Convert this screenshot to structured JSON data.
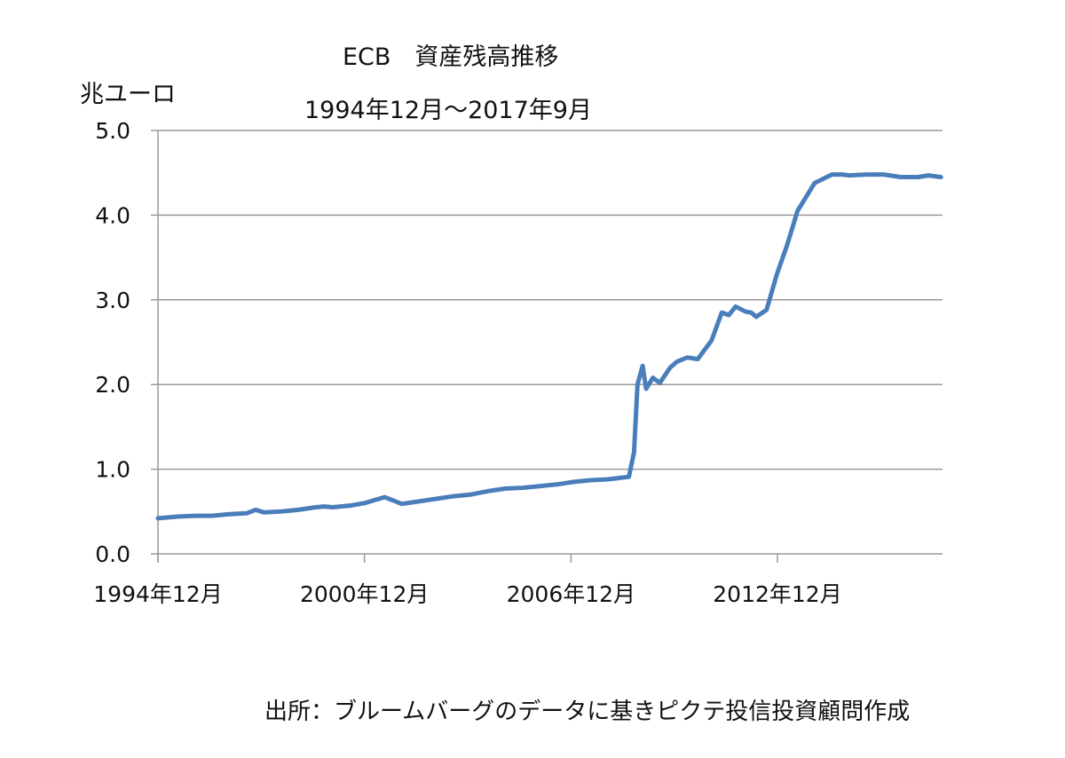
{
  "chart_data": {
    "type": "line",
    "title": "ECB　資産残高推移",
    "subtitle": "1994年12月～2017年9月",
    "ylabel": "兆ユーロ",
    "xlabel": "",
    "ylim": [
      0,
      5
    ],
    "yticks": [
      "0.0",
      "1.0",
      "2.0",
      "3.0",
      "4.0",
      "5.0"
    ],
    "xticks": [
      "1994年12月",
      "2000年12月",
      "2006年12月",
      "2012年12月"
    ],
    "xtick_years": [
      1994.917,
      2000.917,
      2006.917,
      2012.917
    ],
    "xrange": [
      1994.917,
      2017.667
    ],
    "grid": "horizontal",
    "legend": "none",
    "line_color": "#4a7ebb",
    "series": [
      {
        "name": "ECB資産残高",
        "x": [
          1994.917,
          1995.5,
          1996.0,
          1996.5,
          1997.0,
          1997.5,
          1997.75,
          1998.0,
          1998.5,
          1999.0,
          1999.5,
          1999.75,
          2000.0,
          2000.5,
          2000.917,
          2001.5,
          2002.0,
          2002.5,
          2003.0,
          2003.5,
          2004.0,
          2004.5,
          2005.0,
          2005.5,
          2006.0,
          2006.5,
          2007.0,
          2007.5,
          2008.0,
          2008.4,
          2008.6,
          2008.75,
          2008.85,
          2009.0,
          2009.1,
          2009.3,
          2009.5,
          2009.8,
          2010.0,
          2010.3,
          2010.6,
          2011.0,
          2011.3,
          2011.5,
          2011.7,
          2012.0,
          2012.15,
          2012.3,
          2012.6,
          2012.9,
          2013.2,
          2013.5,
          2014.0,
          2014.5,
          2014.8,
          2015.0,
          2015.5,
          2016.0,
          2016.5,
          2017.0,
          2017.3,
          2017.667
        ],
        "values": [
          0.42,
          0.44,
          0.45,
          0.45,
          0.47,
          0.48,
          0.52,
          0.49,
          0.5,
          0.52,
          0.55,
          0.56,
          0.55,
          0.57,
          0.6,
          0.67,
          0.59,
          0.62,
          0.65,
          0.68,
          0.7,
          0.74,
          0.77,
          0.78,
          0.8,
          0.82,
          0.85,
          0.87,
          0.88,
          0.9,
          0.91,
          1.2,
          2.0,
          2.22,
          1.95,
          2.08,
          2.02,
          2.2,
          2.27,
          2.32,
          2.3,
          2.52,
          2.85,
          2.82,
          2.92,
          2.86,
          2.85,
          2.8,
          2.88,
          3.3,
          3.65,
          4.05,
          4.38,
          4.48,
          4.48,
          4.47,
          4.48,
          4.48,
          4.45,
          4.45,
          4.47,
          4.45
        ]
      }
    ]
  },
  "footer": {
    "source": "出所：ブルームバーグのデータに基きピクテ投信投資顧問作成"
  }
}
